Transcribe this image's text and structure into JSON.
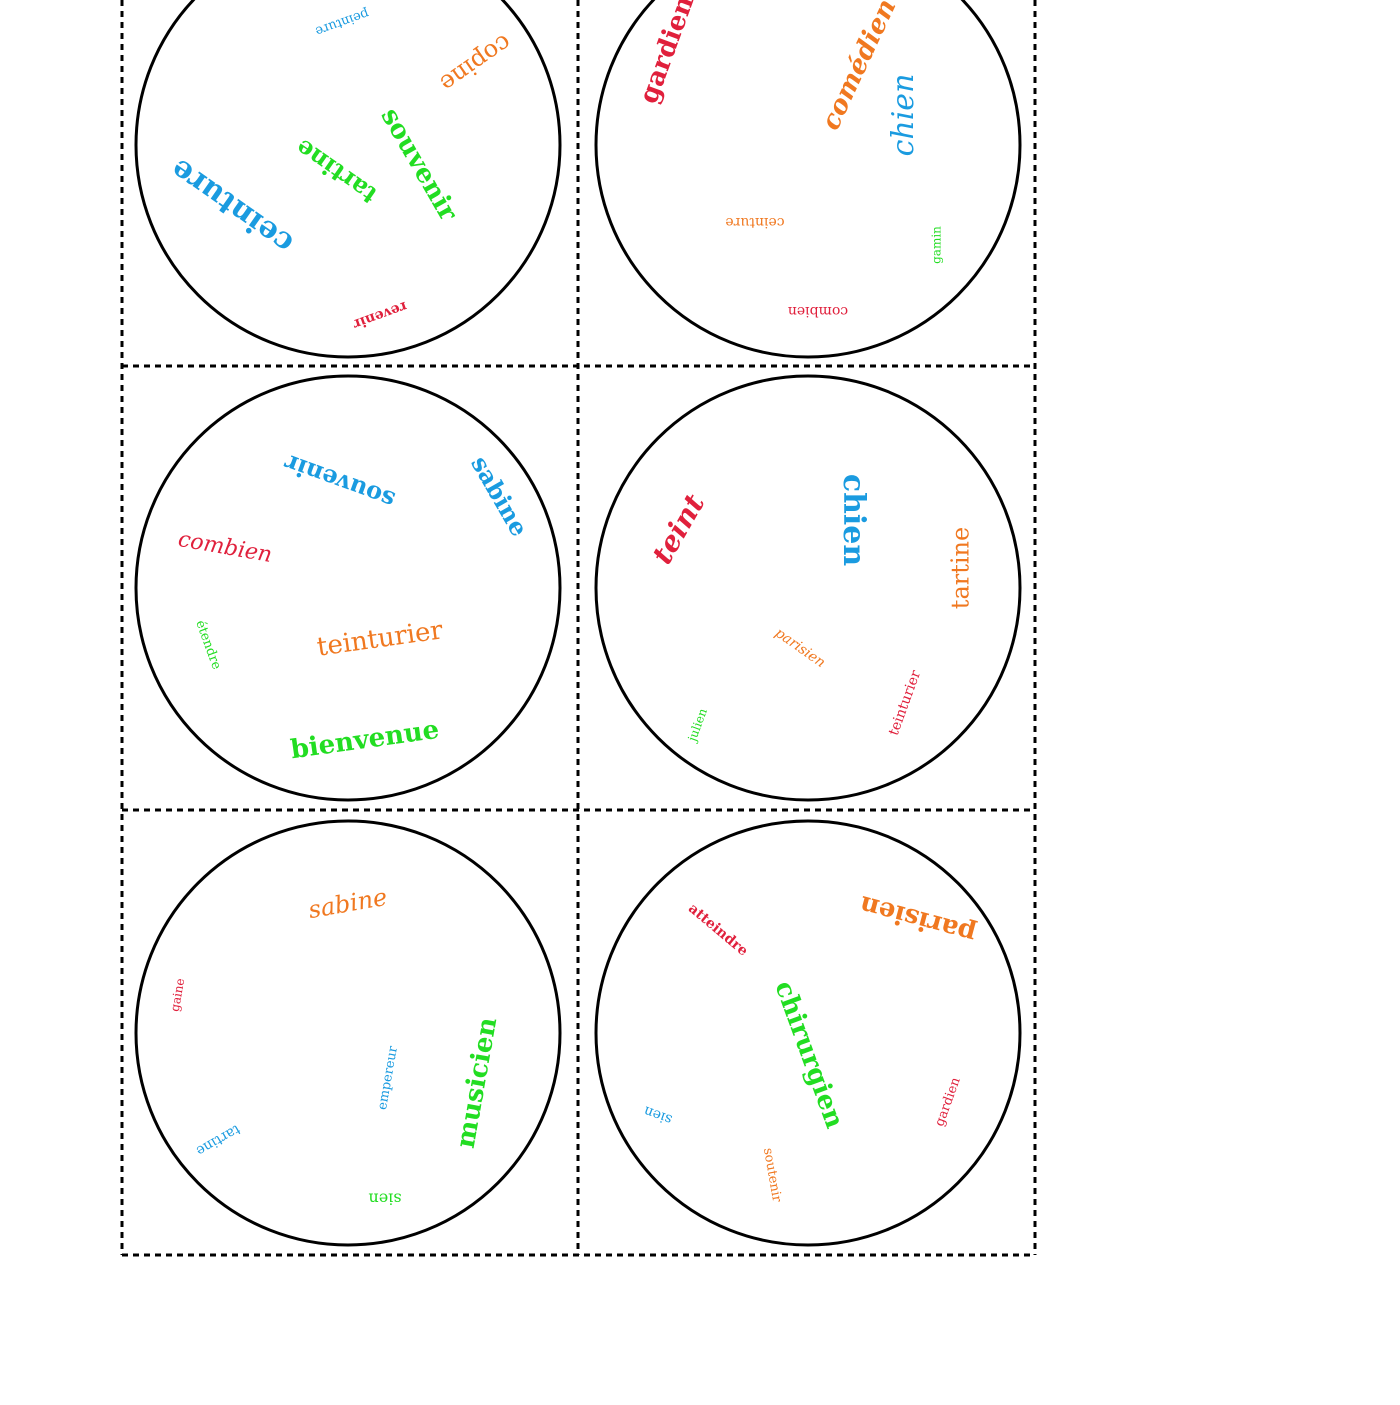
{
  "cards": [
    {
      "words": [
        "peinture",
        "copine",
        "souvenir",
        "tartine",
        "ceinture",
        "revenir"
      ]
    },
    {
      "words": [
        "gardien",
        "comédien",
        "chien",
        "ceinture",
        "gamin",
        "combien"
      ]
    },
    {
      "words": [
        "souvenir",
        "sabine",
        "combien",
        "étendre",
        "teinturier",
        "bienvenue"
      ]
    },
    {
      "words": [
        "teint",
        "chien",
        "tartine",
        "parisien",
        "teinturier",
        "julien"
      ]
    },
    {
      "words": [
        "sabine",
        "gaine",
        "empereur",
        "musicien",
        "tartine",
        "sien"
      ]
    },
    {
      "words": [
        "atteindre",
        "parisien",
        "chirurgien",
        "sien",
        "gardien",
        "soutenir"
      ]
    }
  ]
}
